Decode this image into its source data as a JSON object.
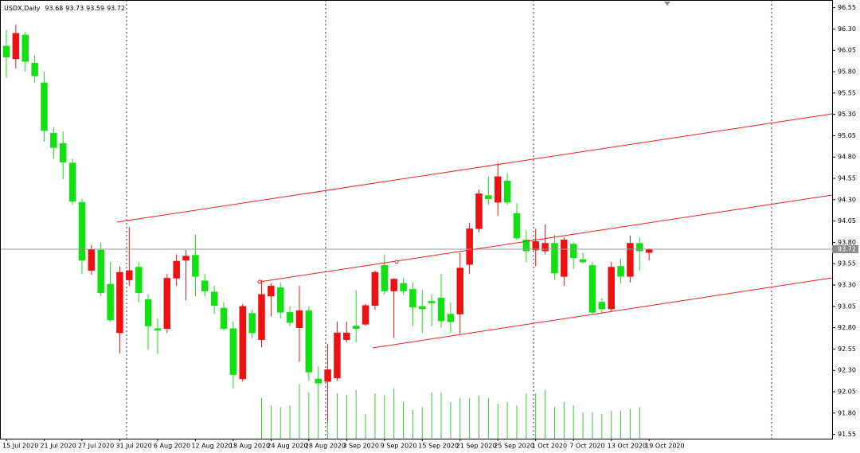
{
  "chart_data": {
    "type": "candlestick",
    "title": "USDX,Daily",
    "categories": [
      "15 Jul 2020",
      null,
      null,
      null,
      "21 Jul 2020",
      null,
      null,
      null,
      "27 Jul 2020",
      null,
      null,
      null,
      "31 Jul 2020",
      null,
      null,
      null,
      "6 Aug 2020",
      null,
      null,
      null,
      "12 Aug 2020",
      null,
      null,
      null,
      "18 Aug 2020",
      null,
      null,
      null,
      "24 Aug 2020",
      null,
      null,
      null,
      "28 Aug 2020",
      null,
      null,
      null,
      "3 Sep 2020",
      null,
      null,
      null,
      "9 Sep 2020",
      null,
      null,
      null,
      "15 Sep 2020",
      null,
      null,
      null,
      "21 Sep 2020",
      null,
      null,
      null,
      "25 Sep 2020",
      null,
      null,
      null,
      "1 Oct 2020",
      null,
      null,
      null,
      "7 Oct 2020",
      null,
      null,
      null,
      "13 Oct 2020",
      null,
      null,
      null,
      "19 Oct 2020"
    ],
    "open": [
      96.1,
      95.95,
      96.23,
      95.9,
      95.67,
      95.08,
      94.96,
      94.73,
      94.27,
      93.47,
      93.71,
      93.31,
      92.74,
      93.36,
      93.51,
      93.13,
      92.79,
      92.79,
      93.38,
      93.59,
      93.65,
      93.35,
      93.22,
      93.03,
      92.79,
      92.2,
      92.97,
      92.66,
      93.17,
      93.27,
      92.98,
      92.8,
      93.0,
      92.2,
      92.17,
      92.21,
      92.66,
      92.82,
      92.84,
      93.06,
      93.53,
      93.23,
      93.32,
      93.25,
      93.05,
      93.11,
      93.15,
      92.96,
      92.96,
      93.54,
      93.96,
      94.35,
      94.27,
      94.52,
      94.14,
      93.83,
      93.71,
      93.7,
      93.79,
      93.4,
      93.78,
      93.6,
      93.53,
      93.1,
      93.02,
      93.52,
      93.4,
      93.79,
      93.68
    ],
    "high": [
      96.29,
      96.35,
      96.27,
      95.99,
      95.8,
      95.15,
      95.1,
      94.78,
      94.31,
      93.77,
      93.8,
      93.57,
      93.52,
      93.98,
      93.57,
      93.19,
      92.91,
      93.43,
      93.66,
      93.71,
      93.89,
      93.43,
      93.29,
      93.1,
      92.87,
      93.08,
      93.01,
      93.36,
      93.32,
      93.33,
      93.05,
      93.29,
      93.05,
      92.35,
      92.61,
      92.87,
      92.87,
      93.24,
      93.08,
      93.47,
      93.66,
      93.38,
      93.38,
      93.33,
      93.24,
      93.19,
      93.43,
      93.1,
      93.68,
      94.03,
      94.42,
      94.57,
      94.73,
      94.61,
      94.26,
      93.94,
      93.96,
      94.01,
      93.89,
      93.86,
      93.8,
      93.68,
      93.57,
      93.15,
      93.57,
      93.61,
      93.88,
      93.86,
      93.73
    ],
    "low": [
      95.73,
      95.84,
      95.8,
      95.67,
      94.98,
      94.78,
      94.54,
      94.24,
      93.43,
      93.42,
      93.17,
      92.87,
      92.5,
      93.29,
      93.1,
      92.54,
      92.49,
      92.74,
      93.29,
      93.12,
      93.17,
      93.17,
      92.96,
      92.77,
      92.09,
      92.17,
      92.68,
      92.57,
      92.93,
      92.91,
      92.82,
      92.4,
      92.18,
      91.96,
      91.7,
      92.18,
      92.63,
      92.63,
      92.82,
      93.01,
      93.19,
      92.68,
      93.19,
      92.82,
      92.74,
      92.82,
      92.8,
      92.74,
      92.73,
      93.43,
      93.92,
      94.24,
      94.11,
      94.24,
      93.83,
      93.57,
      93.52,
      93.66,
      93.36,
      93.29,
      93.49,
      93.55,
      92.95,
      92.96,
      92.99,
      93.32,
      93.33,
      93.47,
      93.59
    ],
    "close": [
      95.97,
      96.25,
      95.92,
      95.75,
      95.11,
      94.91,
      94.74,
      94.28,
      93.59,
      93.72,
      93.21,
      92.89,
      93.45,
      93.47,
      93.21,
      92.82,
      92.77,
      93.38,
      93.58,
      93.64,
      93.4,
      93.23,
      93.06,
      92.79,
      92.25,
      93.05,
      92.74,
      93.19,
      93.29,
      92.98,
      92.86,
      93.0,
      92.28,
      92.15,
      92.31,
      92.74,
      92.74,
      92.79,
      93.06,
      93.45,
      93.23,
      93.37,
      93.23,
      93.04,
      93.02,
      93.09,
      92.88,
      92.87,
      93.5,
      93.96,
      94.37,
      94.31,
      94.57,
      94.27,
      93.85,
      93.7,
      93.81,
      93.79,
      93.44,
      93.83,
      93.62,
      93.57,
      92.98,
      93.02,
      93.51,
      93.4,
      93.79,
      93.7,
      93.72
    ],
    "volume": [
      null,
      null,
      null,
      null,
      null,
      null,
      null,
      null,
      null,
      null,
      null,
      null,
      null,
      null,
      null,
      null,
      null,
      null,
      null,
      null,
      null,
      null,
      null,
      null,
      null,
      null,
      null,
      91.98,
      91.89,
      91.87,
      91.89,
      92.14,
      92.04,
      91.98,
      91.79,
      92.03,
      92.01,
      92.07,
      91.79,
      92.03,
      92.01,
      92.09,
      91.93,
      91.84,
      91.87,
      92.04,
      92.04,
      91.93,
      91.98,
      91.98,
      92.0,
      91.98,
      91.91,
      91.93,
      91.89,
      92.03,
      92.03,
      92.07,
      91.87,
      91.93,
      91.89,
      91.81,
      91.81,
      91.79,
      91.83,
      91.83,
      91.85,
      91.87,
      null
    ],
    "ylim": [
      91.5,
      96.64
    ],
    "yticks": [
      96.55,
      {
        "value": 96.3,
        "label": "96.30"
      },
      96.05,
      {
        "value": 95.8,
        "label": "95.80"
      },
      95.55,
      {
        "value": 95.3,
        "label": "95.30"
      },
      95.05,
      {
        "value": 94.8,
        "label": "94.80"
      },
      94.55,
      {
        "value": 94.3,
        "label": "94.30"
      },
      94.05,
      {
        "value": 93.8,
        "label": "93.80"
      },
      93.55,
      {
        "value": 93.3,
        "label": "93.30"
      },
      93.05,
      {
        "value": 92.8,
        "label": "92.80"
      },
      92.55,
      {
        "value": 92.3,
        "label": "92.30"
      },
      92.05,
      {
        "value": 91.8,
        "label": "91.80"
      },
      91.55
    ],
    "up_color": "#ee1111",
    "down_color": "#11e011",
    "volume_color": "#33cc33",
    "price_line_color": "#999999",
    "grid": false
  }
}
